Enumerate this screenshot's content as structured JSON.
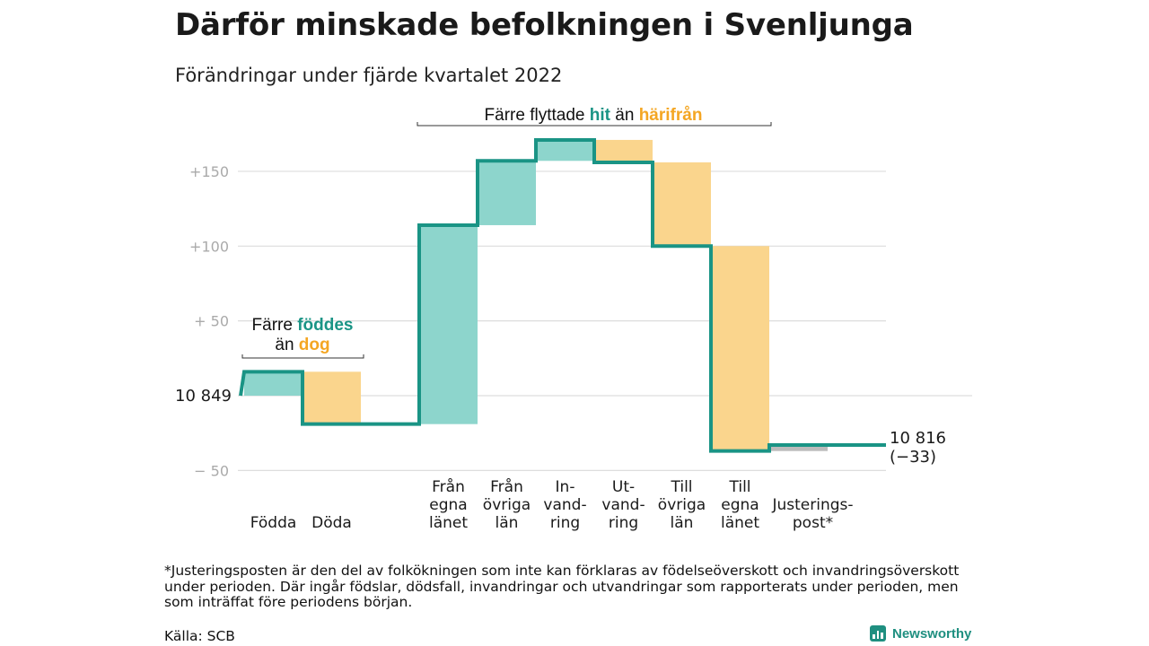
{
  "title": "Därför minskade befolkningen i Svenljunga",
  "subtitle": "Förändringar under fjärde kvartalet 2022",
  "colors": {
    "teal": "#1a9485",
    "teal_fill": "#8dd5cc",
    "orange": "#f4a623",
    "orange_fill": "#fad58d",
    "grid": "#dddddd",
    "adjust": "#bbbbbb"
  },
  "chart_data": {
    "type": "waterfall",
    "start": 10849,
    "start_label": "10 849",
    "end_label": "10 816",
    "end_change_label": "(−33)",
    "ylim": [
      -60,
      175
    ],
    "yticks": [
      {
        "value": 150,
        "label": "+150"
      },
      {
        "value": 100,
        "label": "+100"
      },
      {
        "value": 50,
        "label": "+ 50"
      },
      {
        "value": 0,
        "label": ""
      },
      {
        "value": -50,
        "label": "− 50"
      }
    ],
    "steps": [
      {
        "key": "fodda",
        "label": [
          "Födda"
        ],
        "delta": 16,
        "kind": "in"
      },
      {
        "key": "doda",
        "label": [
          "Döda"
        ],
        "delta": -35,
        "kind": "out"
      },
      {
        "key": "gap",
        "label": [],
        "delta": 0,
        "kind": "gap"
      },
      {
        "key": "fran_egna",
        "label": [
          "Från",
          "egna",
          "länet"
        ],
        "delta": 133,
        "kind": "in"
      },
      {
        "key": "fran_ovriga",
        "label": [
          "Från",
          "övriga",
          "län"
        ],
        "delta": 43,
        "kind": "in"
      },
      {
        "key": "invandring",
        "label": [
          "In-",
          "vand-",
          "ring"
        ],
        "delta": 14,
        "kind": "in"
      },
      {
        "key": "utvandring",
        "label": [
          "Ut-",
          "vand-",
          "ring"
        ],
        "delta": -15,
        "kind": "out"
      },
      {
        "key": "till_ovriga",
        "label": [
          "Till",
          "övriga",
          "län"
        ],
        "delta": -56,
        "kind": "out"
      },
      {
        "key": "till_egna",
        "label": [
          "Till",
          "egna",
          "länet"
        ],
        "delta": -137,
        "kind": "out"
      },
      {
        "key": "justering",
        "label": [
          "Justerings-",
          "post*"
        ],
        "delta": 4,
        "kind": "adjust"
      }
    ],
    "annotations": [
      {
        "key": "births",
        "lines": [
          [
            {
              "t": "Färre ",
              "c": "plain"
            },
            {
              "t": "föddes",
              "c": "teal"
            }
          ],
          [
            {
              "t": "än ",
              "c": "plain"
            },
            {
              "t": "dog",
              "c": "orange"
            }
          ]
        ]
      },
      {
        "key": "moves",
        "lines": [
          [
            {
              "t": "Färre flyttade ",
              "c": "plain"
            },
            {
              "t": "hit",
              "c": "teal"
            },
            {
              "t": " än ",
              "c": "plain"
            },
            {
              "t": "härifrån",
              "c": "orange"
            }
          ]
        ]
      }
    ]
  },
  "footnote": "*Justeringsposten är den del av folkökningen som inte kan förklaras av födelseöverskott och invandringsöverskott under perioden. Där ingår födslar, dödsfall, invandringar och utvandringar som rapporterats under perioden, men som inträffat före periodens början.",
  "source": "Källa: SCB",
  "brand": "Newsworthy"
}
